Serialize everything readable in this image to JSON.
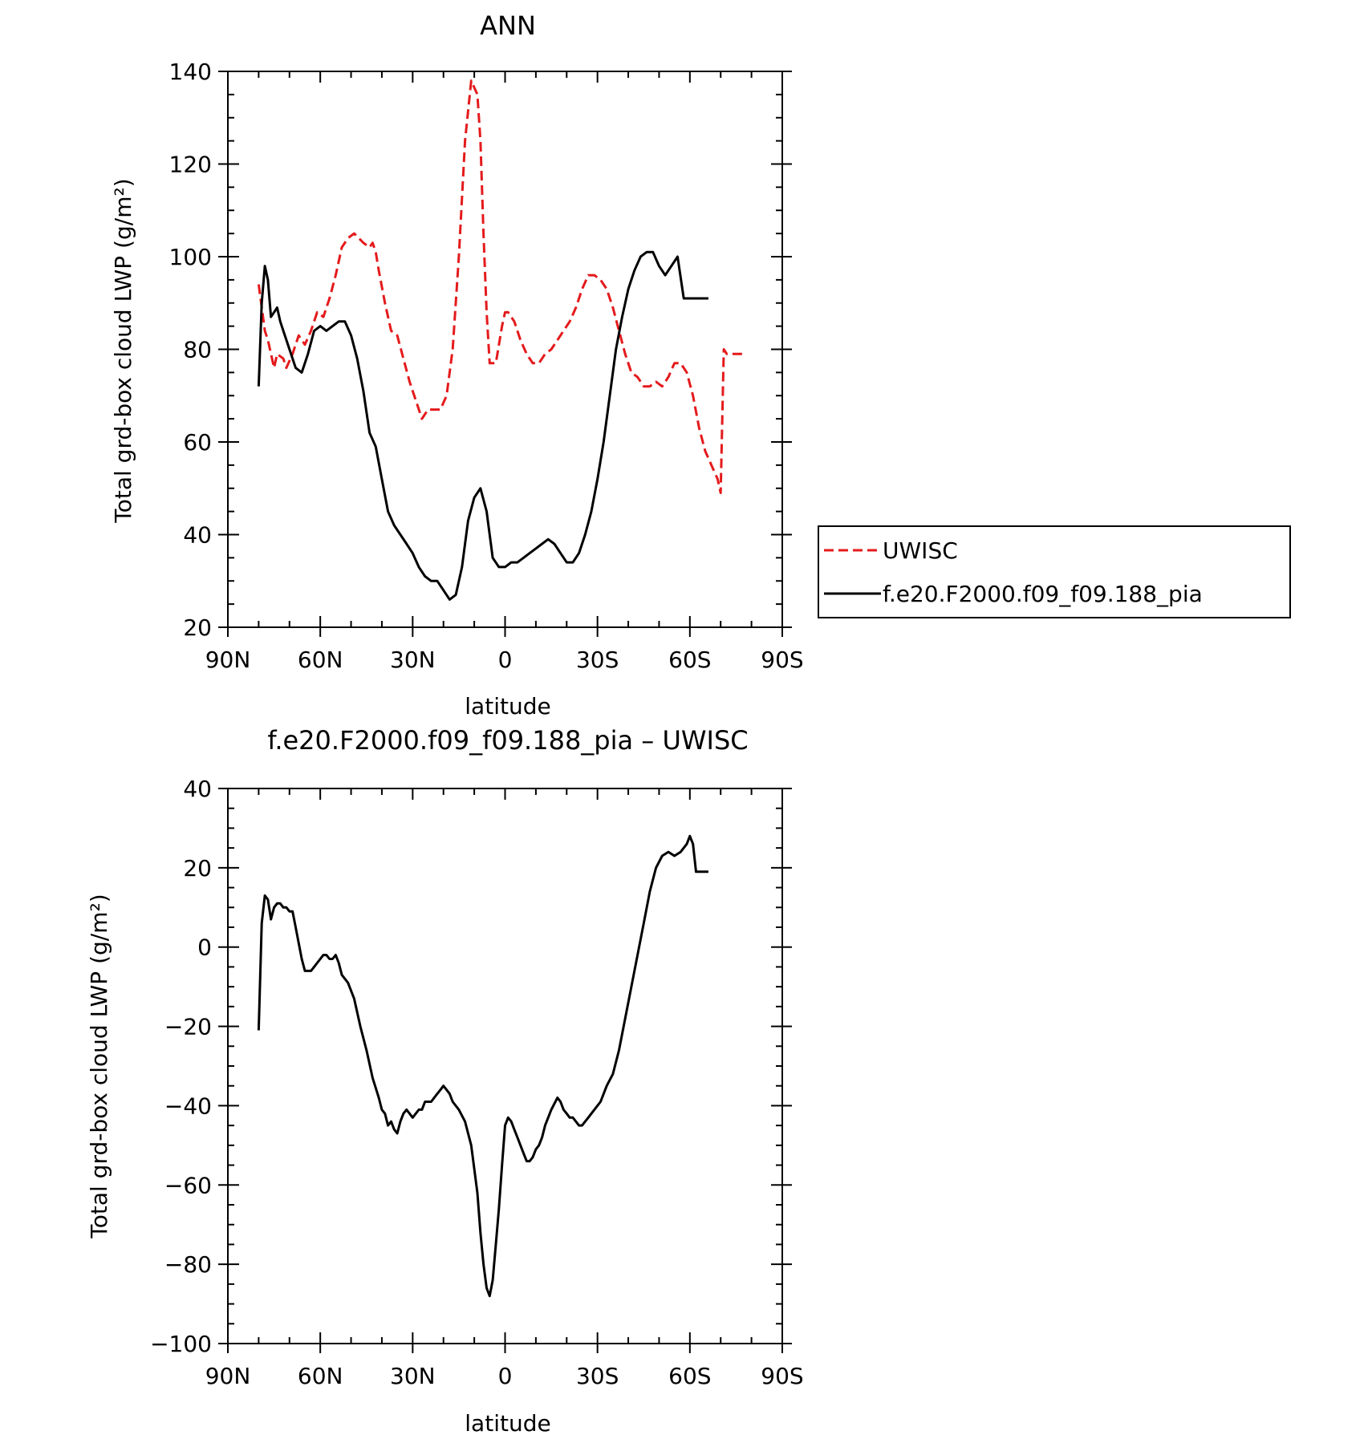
{
  "chart_data": [
    {
      "type": "line",
      "title": "ANN",
      "xlabel": "latitude",
      "ylabel": "Total grd-box cloud LWP (g/m²)",
      "xlim": [
        90,
        -90
      ],
      "ylim": [
        20,
        140
      ],
      "xticks": [
        90,
        60,
        30,
        0,
        -30,
        -60,
        -90
      ],
      "xtick_labels": [
        "90N",
        "60N",
        "30N",
        "0",
        "30S",
        "60S",
        "90S"
      ],
      "yticks": [
        20,
        40,
        60,
        80,
        100,
        120,
        140
      ],
      "ytick_labels": [
        "20",
        "40",
        "60",
        "80",
        "100",
        "120",
        "140"
      ],
      "legend_position": "right",
      "series": [
        {
          "name": "UWISC",
          "color": "#e41a1c",
          "dash": "dashed",
          "x": [
            80,
            78,
            77,
            75,
            74,
            72,
            71,
            69,
            67,
            65,
            63,
            61,
            59,
            57,
            55,
            53,
            51,
            49,
            46,
            44,
            43,
            42,
            41,
            39,
            37,
            35,
            33,
            31,
            29,
            27,
            25,
            23,
            21,
            19,
            17,
            15,
            13,
            11,
            9,
            8,
            7,
            6,
            5,
            3,
            1,
            0,
            -1,
            -3,
            -5,
            -7,
            -9,
            -11,
            -13,
            -15,
            -17,
            -19,
            -21,
            -23,
            -25,
            -27,
            -29,
            -31,
            -33,
            -35,
            -37,
            -39,
            -41,
            -43,
            -45,
            -47,
            -49,
            -51,
            -53,
            -55,
            -57,
            -59,
            -61,
            -63,
            -65,
            -67,
            -69,
            -70,
            -71,
            -72,
            -73,
            -74,
            -75,
            -76,
            -77
          ],
          "y": [
            94,
            84,
            82,
            76,
            79,
            78,
            76,
            79,
            83,
            81,
            84,
            88,
            87,
            91,
            96,
            102,
            104,
            105,
            103,
            102,
            103,
            101,
            97,
            90,
            84,
            83,
            78,
            73,
            69,
            65,
            67,
            67,
            67,
            70,
            80,
            100,
            125,
            138,
            135,
            125,
            105,
            88,
            77,
            77,
            85,
            88,
            88,
            86,
            82,
            79,
            77,
            77,
            79,
            80,
            82,
            84,
            86,
            89,
            93,
            96,
            96,
            95,
            93,
            89,
            84,
            79,
            75,
            74,
            72,
            72,
            73,
            72,
            74,
            77,
            77,
            75,
            70,
            63,
            58,
            55,
            52,
            49,
            80,
            79,
            79,
            79,
            79,
            79,
            79
          ]
        },
        {
          "name": "f.e20.F2000.f09_f09.188_pia",
          "color": "#000000",
          "dash": "solid",
          "x": [
            80,
            79,
            78,
            77,
            76,
            75,
            74,
            73,
            72,
            70,
            68,
            66,
            64,
            62,
            60,
            58,
            56,
            54,
            52,
            50,
            48,
            46,
            44,
            42,
            40,
            38,
            36,
            34,
            32,
            30,
            28,
            26,
            24,
            22,
            20,
            18,
            16,
            14,
            12,
            10,
            8,
            6,
            4,
            2,
            0,
            -2,
            -4,
            -6,
            -8,
            -10,
            -12,
            -14,
            -16,
            -18,
            -20,
            -22,
            -24,
            -26,
            -28,
            -30,
            -32,
            -34,
            -36,
            -38,
            -40,
            -42,
            -44,
            -46,
            -48,
            -50,
            -52,
            -54,
            -56,
            -58,
            -60,
            -62,
            -64,
            -66
          ],
          "y": [
            72,
            90,
            98,
            95,
            87,
            88,
            89,
            86,
            84,
            80,
            76,
            75,
            79,
            84,
            85,
            84,
            85,
            86,
            86,
            83,
            78,
            71,
            62,
            59,
            52,
            45,
            42,
            40,
            38,
            36,
            33,
            31,
            30,
            30,
            28,
            26,
            27,
            33,
            43,
            48,
            50,
            45,
            35,
            33,
            33,
            34,
            34,
            35,
            36,
            37,
            38,
            39,
            38,
            36,
            34,
            34,
            36,
            40,
            45,
            52,
            60,
            70,
            80,
            87,
            93,
            97,
            100,
            101,
            101,
            98,
            96,
            98,
            100,
            91,
            91,
            91,
            91,
            91
          ]
        }
      ]
    },
    {
      "type": "line",
      "title": "f.e20.F2000.f09_f09.188_pia  –  UWISC",
      "xlabel": "latitude",
      "ylabel": "Total grd-box cloud LWP (g/m²)",
      "xlim": [
        90,
        -90
      ],
      "ylim": [
        -100,
        40
      ],
      "xticks": [
        90,
        60,
        30,
        0,
        -30,
        -60,
        -90
      ],
      "xtick_labels": [
        "90N",
        "60N",
        "30N",
        "0",
        "30S",
        "60S",
        "90S"
      ],
      "yticks": [
        -100,
        -80,
        -60,
        -40,
        -20,
        0,
        20,
        40
      ],
      "ytick_labels": [
        "−100",
        "−80",
        "−60",
        "−40",
        "−20",
        "0",
        "20",
        "40"
      ],
      "series": [
        {
          "color": "#000000",
          "dash": "solid",
          "x": [
            80,
            79,
            78,
            77,
            76,
            75,
            74,
            73,
            72,
            71,
            70,
            69,
            68,
            67,
            66,
            65,
            64,
            63,
            62,
            61,
            60,
            59,
            58,
            57,
            56,
            55,
            54,
            53,
            51,
            49,
            47,
            45,
            43,
            41,
            40,
            39,
            38,
            37,
            36,
            35,
            34,
            33,
            32,
            31,
            30,
            29,
            28,
            27,
            26,
            25,
            24,
            23,
            22,
            21,
            20,
            19,
            18,
            17,
            15,
            13,
            11,
            9,
            8,
            7,
            6,
            5,
            4,
            3,
            2,
            1,
            0,
            -1,
            -2,
            -3,
            -4,
            -5,
            -6,
            -7,
            -8,
            -9,
            -10,
            -11,
            -12,
            -13,
            -15,
            -17,
            -18,
            -19,
            -20,
            -21,
            -22,
            -23,
            -24,
            -25,
            -26,
            -27,
            -28,
            -29,
            -31,
            -33,
            -35,
            -37,
            -39,
            -41,
            -43,
            -45,
            -47,
            -49,
            -51,
            -53,
            -55,
            -57,
            -59,
            -60,
            -61,
            -62,
            -63,
            -64,
            -65,
            -66
          ],
          "y": [
            -21,
            6,
            13,
            12,
            7,
            10,
            11,
            11,
            10,
            10,
            9,
            9,
            5,
            1,
            -3,
            -6,
            -6,
            -6,
            -5,
            -4,
            -3,
            -2,
            -2,
            -3,
            -3,
            -2,
            -4,
            -7,
            -9,
            -13,
            -20,
            -26,
            -33,
            -38,
            -41,
            -42,
            -45,
            -44,
            -46,
            -47,
            -44,
            -42,
            -41,
            -42,
            -43,
            -42,
            -41,
            -41,
            -39,
            -39,
            -39,
            -38,
            -37,
            -36,
            -35,
            -36,
            -37,
            -39,
            -41,
            -44,
            -50,
            -62,
            -72,
            -80,
            -86,
            -88,
            -84,
            -75,
            -66,
            -55,
            -45,
            -43,
            -44,
            -46,
            -48,
            -50,
            -52,
            -54,
            -54,
            -53,
            -51,
            -50,
            -48,
            -45,
            -41,
            -38,
            -39,
            -41,
            -42,
            -43,
            -43,
            -44,
            -45,
            -45,
            -44,
            -43,
            -42,
            -41,
            -39,
            -35,
            -32,
            -26,
            -18,
            -10,
            -2,
            6,
            14,
            20,
            23,
            24,
            23,
            24,
            26,
            28,
            26,
            19,
            19,
            19,
            19,
            19
          ]
        }
      ]
    }
  ]
}
